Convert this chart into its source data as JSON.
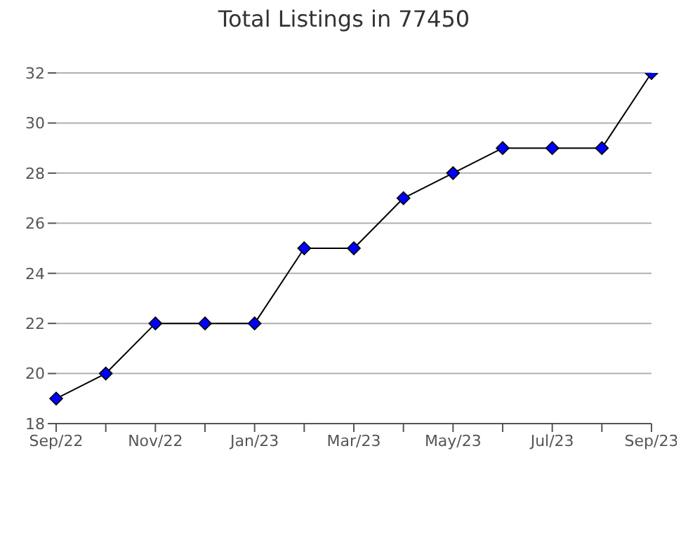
{
  "chart_data": {
    "type": "line",
    "title": "Total Listings in 77450",
    "categories": [
      "Sep/22",
      null,
      "Nov/22",
      null,
      "Jan/23",
      null,
      "Mar/23",
      null,
      "May/23",
      null,
      "Jul/23",
      null,
      "Sep/23"
    ],
    "series": [
      {
        "color": "#0000ff",
        "values": [
          19,
          20,
          22,
          22,
          22,
          25,
          25,
          27,
          28,
          29,
          29,
          29,
          32
        ]
      }
    ],
    "ylim": [
      18,
      32
    ],
    "yticks": [
      18,
      20,
      22,
      24,
      26,
      28,
      30,
      32
    ],
    "grid": "y",
    "marker": "diamond",
    "legend": false
  }
}
